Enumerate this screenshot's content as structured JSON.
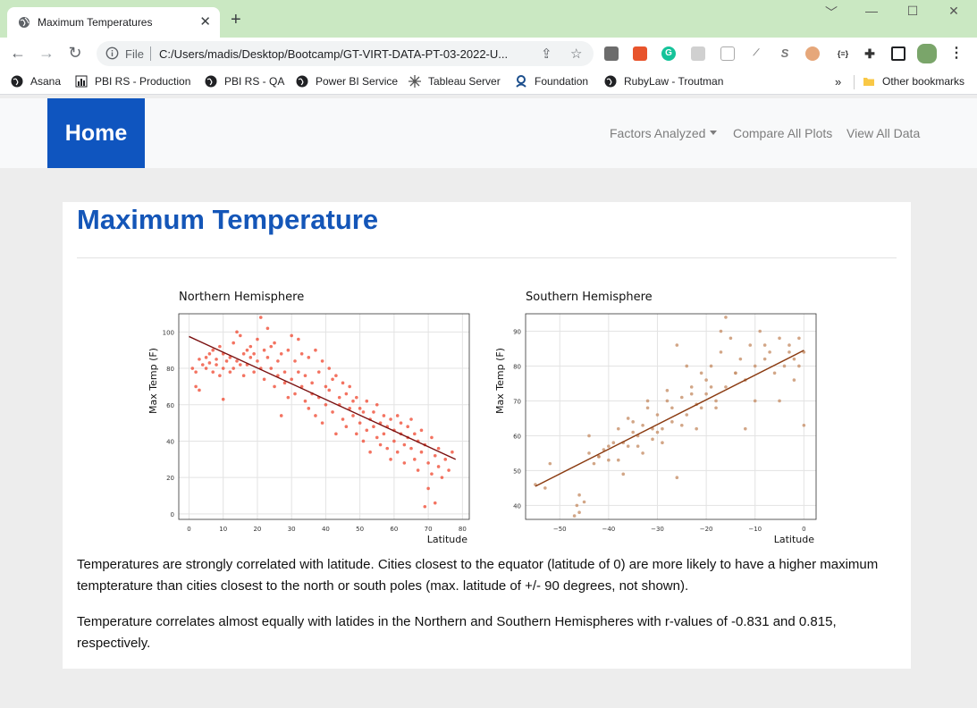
{
  "browser": {
    "tab_title": "Maximum Temperatures",
    "tab_close": "✕",
    "new_tab": "+",
    "window_controls": [
      "﹀",
      "—",
      "☐",
      "✕"
    ],
    "scheme": "File",
    "url": "C:/Users/madis/Desktop/Bootcamp/GT-VIRT-DATA-PT-03-2022-U...",
    "ext_labels": [
      "G",
      "S",
      "{≡}"
    ],
    "bookmarks": [
      "Asana",
      "PBI RS - Production",
      "PBI RS - QA",
      "Power BI Service",
      "Tableau Server",
      "Foundation",
      "RubyLaw - Troutman"
    ],
    "bookmarks_more": "»",
    "other_bookmarks": "Other bookmarks",
    "accent_color": "#cae8c2"
  },
  "navbar": {
    "brand": "Home",
    "brand_color": "#0f55bf",
    "links": [
      "Factors Analyzed",
      "Compare All Plots",
      "View All Data"
    ]
  },
  "page": {
    "title": "Maximum Temperature",
    "title_color": "#1456b8",
    "paragraphs": [
      "Temperatures are strongly correlated with latitude. Cities closest to the equator (latitude of 0) are more likely to have a higher maximum tempterature than cities closest to the north or south poles (max. latitude of +/- 90 degrees, not shown).",
      "Temperature correlates almost equally with latides in the Northern and Southern Hemispheres with r-values of -0.831 and 0.815, respectively."
    ]
  },
  "chart_data": [
    {
      "type": "scatter",
      "title": "Northern Hemisphere",
      "xlabel": "Latitude",
      "ylabel": "Max Temp (F)",
      "xlim": [
        -3,
        82
      ],
      "ylim": [
        -3,
        110
      ],
      "xticks": [
        0,
        10,
        20,
        30,
        40,
        50,
        60,
        70,
        80
      ],
      "yticks": [
        0,
        20,
        40,
        60,
        80,
        100
      ],
      "grid": true,
      "point_color": "#f0503a",
      "line_color": "#7a1010",
      "regression": {
        "x": [
          0,
          78
        ],
        "y": [
          97.5,
          30
        ]
      },
      "points": [
        [
          1,
          80
        ],
        [
          2,
          78
        ],
        [
          2,
          70
        ],
        [
          3,
          68
        ],
        [
          3,
          85
        ],
        [
          4,
          82
        ],
        [
          5,
          80
        ],
        [
          5,
          86
        ],
        [
          6,
          83
        ],
        [
          6,
          88
        ],
        [
          7,
          78
        ],
        [
          7,
          90
        ],
        [
          8,
          82
        ],
        [
          8,
          85
        ],
        [
          9,
          76
        ],
        [
          9,
          92
        ],
        [
          10,
          80
        ],
        [
          10,
          88
        ],
        [
          10,
          63
        ],
        [
          11,
          84
        ],
        [
          12,
          78
        ],
        [
          12,
          86
        ],
        [
          13,
          94
        ],
        [
          13,
          80
        ],
        [
          14,
          100
        ],
        [
          14,
          84
        ],
        [
          15,
          82
        ],
        [
          15,
          98
        ],
        [
          16,
          88
        ],
        [
          16,
          76
        ],
        [
          17,
          90
        ],
        [
          17,
          82
        ],
        [
          18,
          86
        ],
        [
          18,
          92
        ],
        [
          19,
          78
        ],
        [
          19,
          88
        ],
        [
          20,
          84
        ],
        [
          20,
          96
        ],
        [
          21,
          108
        ],
        [
          21,
          80
        ],
        [
          22,
          90
        ],
        [
          22,
          74
        ],
        [
          23,
          86
        ],
        [
          23,
          102
        ],
        [
          24,
          92
        ],
        [
          24,
          80
        ],
        [
          25,
          94
        ],
        [
          25,
          70
        ],
        [
          26,
          84
        ],
        [
          26,
          76
        ],
        [
          27,
          88
        ],
        [
          27,
          54
        ],
        [
          28,
          78
        ],
        [
          28,
          72
        ],
        [
          29,
          90
        ],
        [
          29,
          64
        ],
        [
          30,
          98
        ],
        [
          30,
          74
        ],
        [
          31,
          84
        ],
        [
          31,
          66
        ],
        [
          32,
          96
        ],
        [
          32,
          78
        ],
        [
          33,
          70
        ],
        [
          33,
          88
        ],
        [
          34,
          62
        ],
        [
          34,
          76
        ],
        [
          35,
          86
        ],
        [
          35,
          58
        ],
        [
          36,
          72
        ],
        [
          36,
          66
        ],
        [
          37,
          90
        ],
        [
          37,
          54
        ],
        [
          38,
          78
        ],
        [
          38,
          64
        ],
        [
          39,
          84
        ],
        [
          39,
          50
        ],
        [
          40,
          70
        ],
        [
          40,
          60
        ],
        [
          41,
          80
        ],
        [
          41,
          68
        ],
        [
          42,
          56
        ],
        [
          42,
          74
        ],
        [
          43,
          76
        ],
        [
          43,
          44
        ],
        [
          44,
          64
        ],
        [
          44,
          60
        ],
        [
          45,
          72
        ],
        [
          45,
          52
        ],
        [
          46,
          66
        ],
        [
          46,
          48
        ],
        [
          47,
          58
        ],
        [
          47,
          70
        ],
        [
          48,
          54
        ],
        [
          48,
          62
        ],
        [
          49,
          64
        ],
        [
          49,
          44
        ],
        [
          50,
          50
        ],
        [
          50,
          58
        ],
        [
          51,
          56
        ],
        [
          51,
          40
        ],
        [
          52,
          62
        ],
        [
          52,
          46
        ],
        [
          53,
          52
        ],
        [
          53,
          34
        ],
        [
          54,
          48
        ],
        [
          54,
          56
        ],
        [
          55,
          42
        ],
        [
          55,
          60
        ],
        [
          56,
          50
        ],
        [
          56,
          38
        ],
        [
          57,
          44
        ],
        [
          57,
          54
        ],
        [
          58,
          36
        ],
        [
          58,
          48
        ],
        [
          59,
          52
        ],
        [
          59,
          30
        ],
        [
          60,
          46
        ],
        [
          60,
          40
        ],
        [
          61,
          54
        ],
        [
          61,
          34
        ],
        [
          62,
          44
        ],
        [
          62,
          50
        ],
        [
          63,
          38
        ],
        [
          63,
          28
        ],
        [
          64,
          48
        ],
        [
          64,
          42
        ],
        [
          65,
          36
        ],
        [
          65,
          52
        ],
        [
          66,
          30
        ],
        [
          66,
          44
        ],
        [
          67,
          40
        ],
        [
          67,
          24
        ],
        [
          68,
          46
        ],
        [
          68,
          34
        ],
        [
          69,
          38
        ],
        [
          69,
          4
        ],
        [
          70,
          28
        ],
        [
          70,
          14
        ],
        [
          71,
          42
        ],
        [
          71,
          22
        ],
        [
          72,
          6
        ],
        [
          72,
          32
        ],
        [
          73,
          26
        ],
        [
          73,
          36
        ],
        [
          74,
          20
        ],
        [
          75,
          30
        ],
        [
          76,
          24
        ],
        [
          77,
          34
        ]
      ]
    },
    {
      "type": "scatter",
      "title": "Southern Hemisphere",
      "xlabel": "Latitude",
      "ylabel": "Max Temp (F)",
      "xlim": [
        -57,
        2.5
      ],
      "ylim": [
        36,
        95
      ],
      "xticks": [
        -50,
        -40,
        -30,
        -20,
        -10,
        0
      ],
      "yticks": [
        40,
        50,
        60,
        70,
        80,
        90
      ],
      "grid": true,
      "point_color": "#c79069",
      "line_color": "#8a3a10",
      "regression": {
        "x": [
          -55,
          0
        ],
        "y": [
          45.5,
          84.5
        ]
      },
      "points": [
        [
          -55,
          46
        ],
        [
          -53,
          45
        ],
        [
          -52,
          52
        ],
        [
          -47,
          37
        ],
        [
          -46.5,
          40
        ],
        [
          -46,
          38
        ],
        [
          -46,
          43
        ],
        [
          -45,
          41
        ],
        [
          -44,
          55
        ],
        [
          -43,
          52
        ],
        [
          -42,
          54
        ],
        [
          -41,
          56
        ],
        [
          -40,
          53
        ],
        [
          -39,
          58
        ],
        [
          -38,
          62
        ],
        [
          -37,
          49
        ],
        [
          -36,
          57
        ],
        [
          -35,
          64
        ],
        [
          -34,
          60
        ],
        [
          -33,
          55
        ],
        [
          -32,
          68
        ],
        [
          -31,
          62
        ],
        [
          -30,
          66
        ],
        [
          -29,
          58
        ],
        [
          -28,
          70
        ],
        [
          -27,
          64
        ],
        [
          -26,
          48
        ],
        [
          -25,
          71
        ],
        [
          -24,
          66
        ],
        [
          -23,
          74
        ],
        [
          -22,
          69
        ],
        [
          -21,
          78
        ],
        [
          -20,
          72
        ],
        [
          -19,
          80
        ],
        [
          -18,
          70
        ],
        [
          -17,
          84
        ],
        [
          -16,
          74
        ],
        [
          -15,
          88
        ],
        [
          -14,
          78
        ],
        [
          -13,
          82
        ],
        [
          -12,
          76
        ],
        [
          -11,
          86
        ],
        [
          -10,
          80
        ],
        [
          -9,
          90
        ],
        [
          -8,
          82
        ],
        [
          -7,
          84
        ],
        [
          -6,
          78
        ],
        [
          -5,
          88
        ],
        [
          -4,
          80
        ],
        [
          -3,
          86
        ],
        [
          -2,
          82
        ],
        [
          -1,
          88
        ],
        [
          0,
          84
        ],
        [
          0,
          63
        ],
        [
          -1,
          80
        ],
        [
          -2,
          76
        ],
        [
          -3,
          84
        ],
        [
          -5,
          70
        ],
        [
          -8,
          86
        ],
        [
          -10,
          70
        ],
        [
          -12,
          62
        ],
        [
          -14,
          78
        ],
        [
          -16,
          94
        ],
        [
          -18,
          68
        ],
        [
          -20,
          76
        ],
        [
          -22,
          62
        ],
        [
          -24,
          80
        ],
        [
          -26,
          86
        ],
        [
          -28,
          73
        ],
        [
          -30,
          61
        ],
        [
          -32,
          70
        ],
        [
          -34,
          57
        ],
        [
          -36,
          65
        ],
        [
          -38,
          53
        ],
        [
          -40,
          57
        ],
        [
          -42,
          54
        ],
        [
          -44,
          60
        ],
        [
          -17,
          90
        ],
        [
          -19,
          74
        ],
        [
          -21,
          68
        ],
        [
          -23,
          72
        ],
        [
          -25,
          63
        ],
        [
          -27,
          68
        ],
        [
          -29,
          62
        ],
        [
          -31,
          59
        ],
        [
          -33,
          63
        ],
        [
          -35,
          61
        ],
        [
          -37,
          58
        ]
      ]
    }
  ]
}
